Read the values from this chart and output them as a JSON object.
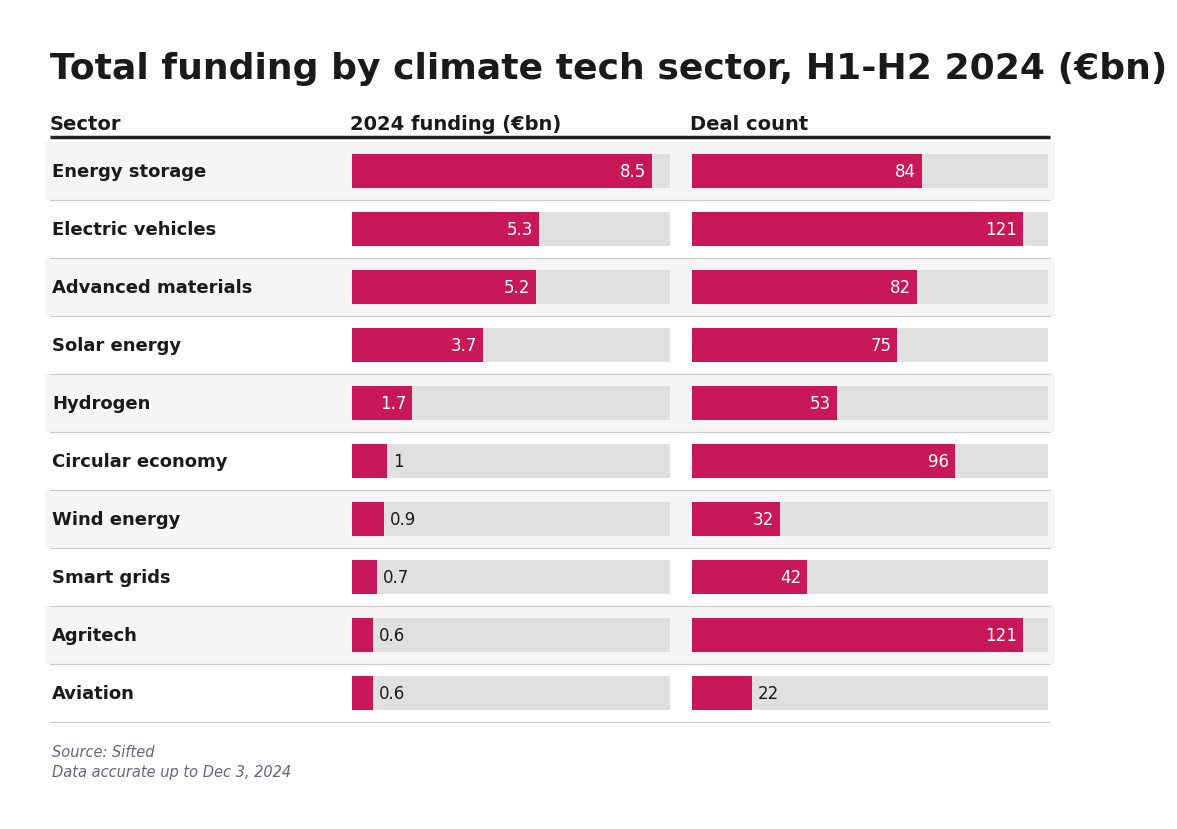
{
  "title": "Total funding by climate tech sector, H1-H2 2024 (€bn)",
  "col1_header": "Sector",
  "col2_header": "2024 funding (€bn)",
  "col3_header": "Deal count",
  "sectors": [
    "Energy storage",
    "Electric vehicles",
    "Advanced materials",
    "Solar energy",
    "Hydrogen",
    "Circular economy",
    "Wind energy",
    "Smart grids",
    "Agritech",
    "Aviation"
  ],
  "funding": [
    8.5,
    5.3,
    5.2,
    3.7,
    1.7,
    1.0,
    0.9,
    0.7,
    0.6,
    0.6
  ],
  "deals": [
    84,
    121,
    82,
    75,
    53,
    96,
    32,
    42,
    121,
    22
  ],
  "funding_max": 9.0,
  "deals_max": 130,
  "bar_color": "#C8185A",
  "bg_color": "#E0E0E0",
  "row_bg_odd": "#F5F5F5",
  "row_bg_even": "#FFFFFF",
  "text_color": "#1A1A1A",
  "white": "#FFFFFF",
  "source_line1": "Source: Sifted",
  "source_line2": "Data accurate up to Dec 3, 2024",
  "figure_bg": "#FFFFFF",
  "source_color": "#666677"
}
